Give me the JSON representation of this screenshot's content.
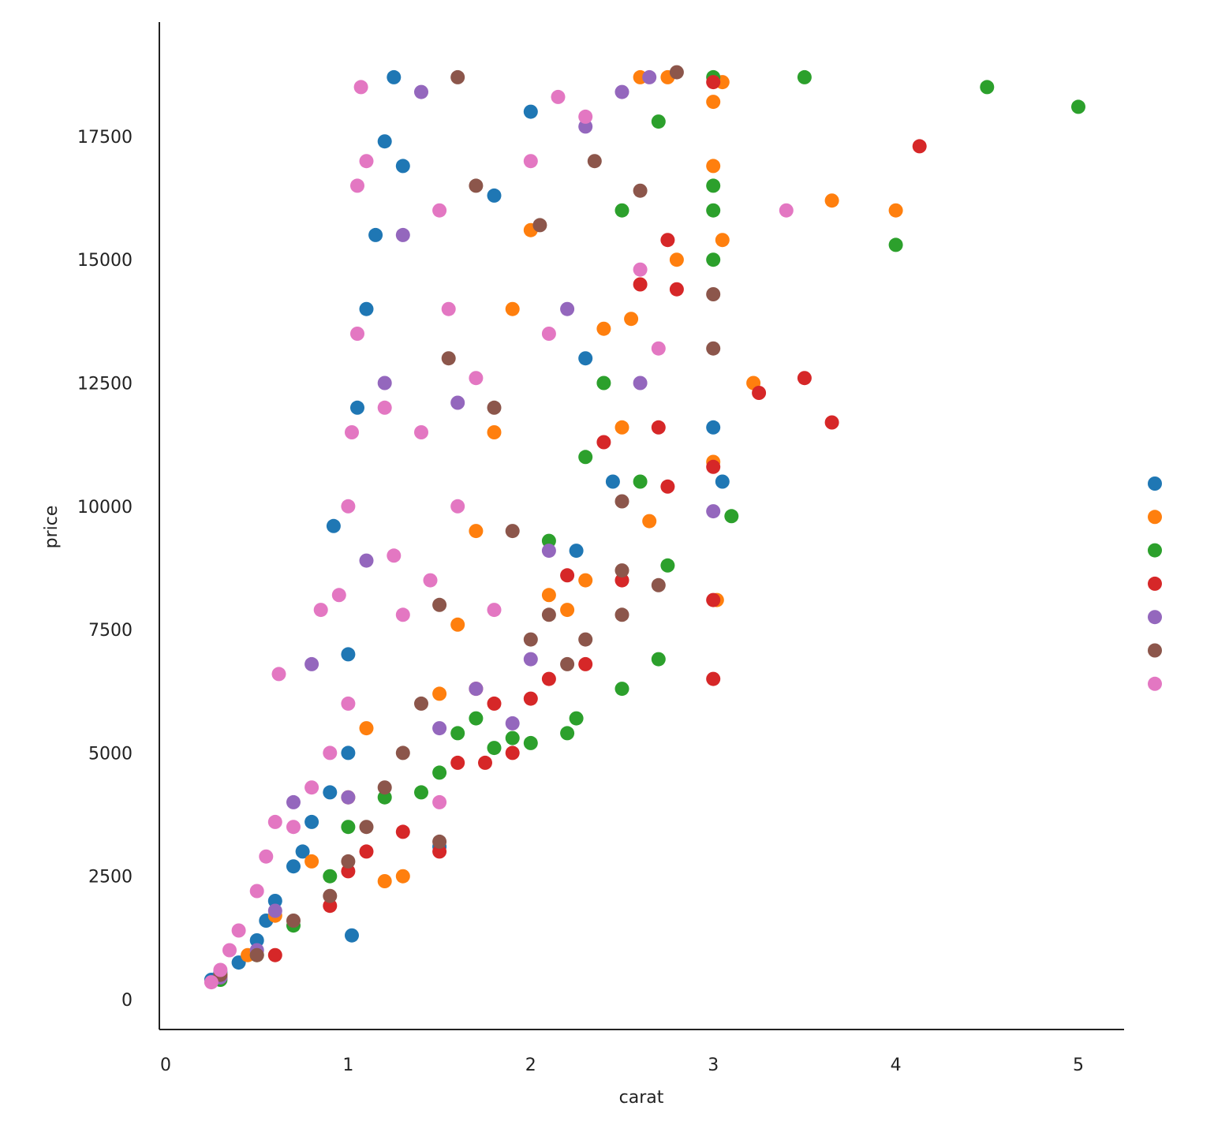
{
  "chart_data": {
    "type": "scatter",
    "xlabel": "carat",
    "ylabel": "price",
    "xlim": [
      -0.03,
      5.25
    ],
    "ylim": [
      -600,
      19200
    ],
    "x_ticks": [
      0,
      1,
      2,
      3,
      4,
      5
    ],
    "y_ticks": [
      0,
      2500,
      5000,
      7500,
      10000,
      12500,
      15000,
      17500
    ],
    "x_tick_labels": [
      "0",
      "1",
      "2",
      "3",
      "4",
      "5"
    ],
    "y_tick_labels": [
      "0",
      "2500",
      "5000",
      "7500",
      "10000",
      "12500",
      "15000",
      "17500"
    ],
    "grid": false,
    "legend_position": "right",
    "series": [
      {
        "color": "#1f77b4",
        "points": [
          [
            0.25,
            400
          ],
          [
            0.3,
            550
          ],
          [
            0.4,
            750
          ],
          [
            0.5,
            1200
          ],
          [
            0.55,
            1600
          ],
          [
            0.6,
            2000
          ],
          [
            0.7,
            2700
          ],
          [
            0.75,
            3000
          ],
          [
            0.8,
            3600
          ],
          [
            0.9,
            4200
          ],
          [
            0.92,
            9600
          ],
          [
            1.0,
            5000
          ],
          [
            1.0,
            7000
          ],
          [
            1.02,
            1300
          ],
          [
            1.05,
            12000
          ],
          [
            1.1,
            14000
          ],
          [
            1.15,
            15500
          ],
          [
            1.2,
            17400
          ],
          [
            1.25,
            18700
          ],
          [
            1.3,
            16900
          ],
          [
            1.5,
            3100
          ],
          [
            1.8,
            16300
          ],
          [
            2.0,
            18000
          ],
          [
            2.25,
            9100
          ],
          [
            2.3,
            13000
          ],
          [
            2.45,
            10500
          ],
          [
            3.0,
            11600
          ],
          [
            3.05,
            10500
          ]
        ]
      },
      {
        "color": "#ff7f0e",
        "points": [
          [
            0.3,
            500
          ],
          [
            0.45,
            900
          ],
          [
            0.6,
            1700
          ],
          [
            0.8,
            2800
          ],
          [
            1.0,
            4100
          ],
          [
            1.1,
            5500
          ],
          [
            1.2,
            2400
          ],
          [
            1.3,
            2500
          ],
          [
            1.5,
            6200
          ],
          [
            1.6,
            7600
          ],
          [
            1.7,
            9500
          ],
          [
            1.8,
            11500
          ],
          [
            1.9,
            14000
          ],
          [
            2.0,
            15600
          ],
          [
            2.1,
            8200
          ],
          [
            2.2,
            7900
          ],
          [
            2.3,
            8500
          ],
          [
            2.4,
            13600
          ],
          [
            2.5,
            11600
          ],
          [
            2.55,
            13800
          ],
          [
            2.6,
            18700
          ],
          [
            2.65,
            9700
          ],
          [
            2.75,
            18700
          ],
          [
            2.8,
            15000
          ],
          [
            3.0,
            10900
          ],
          [
            3.0,
            16900
          ],
          [
            3.0,
            18200
          ],
          [
            3.02,
            8100
          ],
          [
            3.05,
            15400
          ],
          [
            3.05,
            18600
          ],
          [
            3.22,
            12500
          ],
          [
            3.65,
            16200
          ],
          [
            4.0,
            16000
          ]
        ]
      },
      {
        "color": "#2ca02c",
        "points": [
          [
            0.3,
            400
          ],
          [
            0.5,
            900
          ],
          [
            0.7,
            1500
          ],
          [
            0.9,
            2500
          ],
          [
            1.0,
            3500
          ],
          [
            1.2,
            4100
          ],
          [
            1.4,
            4200
          ],
          [
            1.5,
            4600
          ],
          [
            1.6,
            5400
          ],
          [
            1.7,
            5700
          ],
          [
            1.8,
            5100
          ],
          [
            1.9,
            5300
          ],
          [
            2.0,
            5200
          ],
          [
            2.1,
            9300
          ],
          [
            2.2,
            5400
          ],
          [
            2.25,
            5700
          ],
          [
            2.3,
            11000
          ],
          [
            2.4,
            12500
          ],
          [
            2.5,
            6300
          ],
          [
            2.5,
            16000
          ],
          [
            2.6,
            10500
          ],
          [
            2.7,
            6900
          ],
          [
            2.75,
            8800
          ],
          [
            2.7,
            17800
          ],
          [
            3.0,
            15000
          ],
          [
            3.0,
            16000
          ],
          [
            3.0,
            16500
          ],
          [
            3.0,
            18700
          ],
          [
            3.1,
            9800
          ],
          [
            3.5,
            18700
          ],
          [
            4.0,
            15300
          ],
          [
            4.5,
            18500
          ],
          [
            5.0,
            18100
          ]
        ]
      },
      {
        "color": "#d62728",
        "points": [
          [
            0.3,
            450
          ],
          [
            0.6,
            900
          ],
          [
            0.9,
            1900
          ],
          [
            1.0,
            2600
          ],
          [
            1.1,
            3000
          ],
          [
            1.3,
            3400
          ],
          [
            1.5,
            3000
          ],
          [
            1.6,
            4800
          ],
          [
            1.7,
            6300
          ],
          [
            1.75,
            4800
          ],
          [
            1.8,
            6000
          ],
          [
            1.9,
            5000
          ],
          [
            2.0,
            6100
          ],
          [
            2.1,
            6500
          ],
          [
            2.2,
            8600
          ],
          [
            2.3,
            6800
          ],
          [
            2.4,
            11300
          ],
          [
            2.5,
            8500
          ],
          [
            2.6,
            14500
          ],
          [
            2.7,
            11600
          ],
          [
            2.75,
            10400
          ],
          [
            2.75,
            15400
          ],
          [
            2.8,
            14400
          ],
          [
            3.0,
            6500
          ],
          [
            3.0,
            8100
          ],
          [
            3.0,
            10800
          ],
          [
            3.0,
            18600
          ],
          [
            3.25,
            12300
          ],
          [
            3.5,
            12600
          ],
          [
            3.65,
            11700
          ],
          [
            4.13,
            17300
          ]
        ]
      },
      {
        "color": "#9467bd",
        "points": [
          [
            0.3,
            450
          ],
          [
            0.5,
            1000
          ],
          [
            0.6,
            1800
          ],
          [
            0.7,
            4000
          ],
          [
            0.8,
            6800
          ],
          [
            1.0,
            4100
          ],
          [
            1.1,
            8900
          ],
          [
            1.2,
            12500
          ],
          [
            1.3,
            15500
          ],
          [
            1.4,
            18400
          ],
          [
            1.5,
            5500
          ],
          [
            1.6,
            12100
          ],
          [
            1.7,
            6300
          ],
          [
            1.9,
            5600
          ],
          [
            2.0,
            6900
          ],
          [
            2.1,
            9100
          ],
          [
            2.2,
            14000
          ],
          [
            2.3,
            17700
          ],
          [
            2.5,
            18400
          ],
          [
            2.6,
            12500
          ],
          [
            2.65,
            18700
          ],
          [
            3.0,
            9900
          ]
        ]
      },
      {
        "color": "#8c564b",
        "points": [
          [
            0.3,
            500
          ],
          [
            0.5,
            900
          ],
          [
            0.7,
            1600
          ],
          [
            0.9,
            2100
          ],
          [
            1.0,
            2800
          ],
          [
            1.1,
            3500
          ],
          [
            1.2,
            4300
          ],
          [
            1.3,
            5000
          ],
          [
            1.4,
            6000
          ],
          [
            1.5,
            3200
          ],
          [
            1.5,
            8000
          ],
          [
            1.55,
            13000
          ],
          [
            1.6,
            18700
          ],
          [
            1.7,
            16500
          ],
          [
            1.8,
            12000
          ],
          [
            1.9,
            9500
          ],
          [
            2.0,
            7300
          ],
          [
            2.05,
            15700
          ],
          [
            2.1,
            7800
          ],
          [
            2.2,
            6800
          ],
          [
            2.3,
            7300
          ],
          [
            2.35,
            17000
          ],
          [
            2.5,
            7800
          ],
          [
            2.5,
            8700
          ],
          [
            2.5,
            10100
          ],
          [
            2.6,
            16400
          ],
          [
            2.7,
            8400
          ],
          [
            2.8,
            18800
          ],
          [
            3.0,
            13200
          ],
          [
            3.0,
            14300
          ]
        ]
      },
      {
        "color": "#e377c2",
        "points": [
          [
            0.25,
            350
          ],
          [
            0.3,
            600
          ],
          [
            0.35,
            1000
          ],
          [
            0.4,
            1400
          ],
          [
            0.5,
            2200
          ],
          [
            0.55,
            2900
          ],
          [
            0.6,
            3600
          ],
          [
            0.62,
            6600
          ],
          [
            0.7,
            3500
          ],
          [
            0.8,
            4300
          ],
          [
            0.85,
            7900
          ],
          [
            0.9,
            5000
          ],
          [
            0.95,
            8200
          ],
          [
            1.0,
            6000
          ],
          [
            1.0,
            10000
          ],
          [
            1.02,
            11500
          ],
          [
            1.05,
            13500
          ],
          [
            1.05,
            16500
          ],
          [
            1.07,
            18500
          ],
          [
            1.1,
            17000
          ],
          [
            1.2,
            12000
          ],
          [
            1.25,
            9000
          ],
          [
            1.3,
            7800
          ],
          [
            1.4,
            11500
          ],
          [
            1.45,
            8500
          ],
          [
            1.5,
            4000
          ],
          [
            1.5,
            16000
          ],
          [
            1.55,
            14000
          ],
          [
            1.6,
            10000
          ],
          [
            1.7,
            12600
          ],
          [
            1.8,
            7900
          ],
          [
            2.0,
            17000
          ],
          [
            2.1,
            13500
          ],
          [
            2.15,
            18300
          ],
          [
            2.3,
            17900
          ],
          [
            2.6,
            14800
          ],
          [
            2.7,
            13200
          ],
          [
            3.4,
            16000
          ]
        ]
      }
    ]
  }
}
